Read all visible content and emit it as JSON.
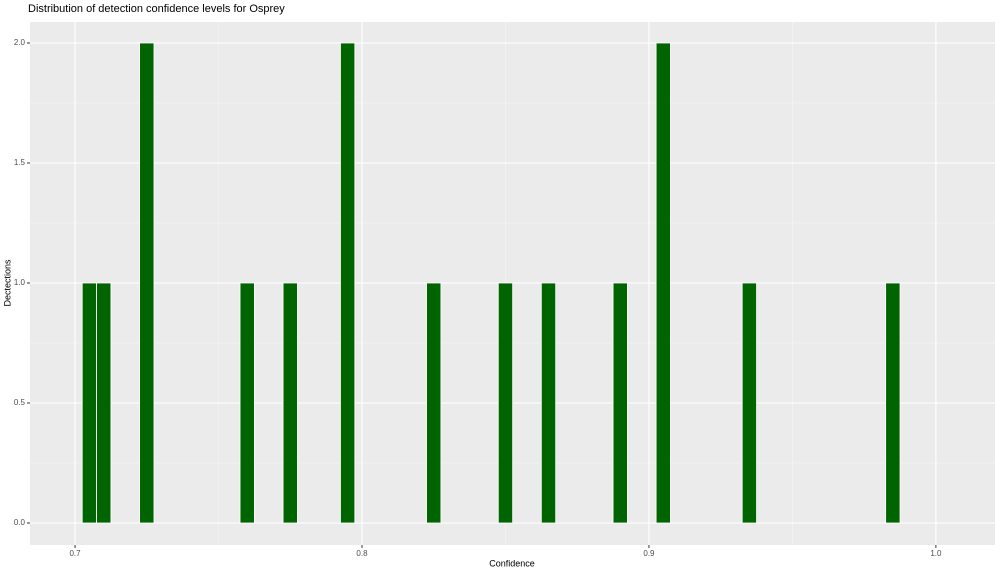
{
  "chart_data": {
    "type": "histogram",
    "title": "Distribution of detection confidence levels for Osprey",
    "x_label": "Confidence",
    "y_label": "Dectections",
    "bins": [
      0.7025,
      0.7075,
      0.7125,
      0.7175,
      0.7225,
      0.7275,
      0.7325,
      0.7375,
      0.7425,
      0.7475,
      0.7525,
      0.7575,
      0.7625,
      0.7675,
      0.7725,
      0.7775,
      0.7825,
      0.7875,
      0.7925,
      0.7975,
      0.8025,
      0.8075,
      0.8125,
      0.8175,
      0.8225,
      0.8275,
      0.8325,
      0.8375,
      0.8425,
      0.8475,
      0.8525,
      0.8575,
      0.8625,
      0.8675,
      0.8725,
      0.8775,
      0.8825,
      0.8875,
      0.8925,
      0.8975,
      0.9025,
      0.9075,
      0.9125,
      0.9175,
      0.9225,
      0.9275,
      0.9325,
      0.9375,
      0.9425,
      0.9475,
      0.9525,
      0.9575,
      0.9625,
      0.9675,
      0.9725,
      0.9775,
      0.9825,
      0.9875
    ],
    "values": [
      1,
      1,
      0,
      0,
      2,
      0,
      0,
      0,
      0,
      0,
      0,
      1,
      0,
      0,
      1,
      0,
      0,
      0,
      2,
      0,
      0,
      0,
      0,
      0,
      1,
      0,
      0,
      0,
      0,
      1,
      0,
      0,
      1,
      0,
      0,
      0,
      0,
      1,
      0,
      0,
      2,
      0,
      0,
      0,
      0,
      0,
      1,
      0,
      0,
      0,
      0,
      0,
      0,
      0,
      0,
      0,
      1
    ],
    "color": "#006400",
    "xlim": [
      0.6843,
      1.0206
    ],
    "xticks": [
      0.7,
      0.8,
      0.9,
      {
        "value": 1.0,
        "label": "1.0"
      }
    ],
    "ylim": [
      -0.0917,
      2.0875
    ],
    "yticks": [
      {
        "value": 0,
        "label": "0.0"
      },
      {
        "value": 0.5,
        "label": "0.5"
      },
      {
        "value": 1,
        "label": "1.0"
      },
      {
        "value": 1.5,
        "label": "1.5"
      },
      {
        "value": 2,
        "label": "2.0"
      }
    ],
    "grid": true
  }
}
